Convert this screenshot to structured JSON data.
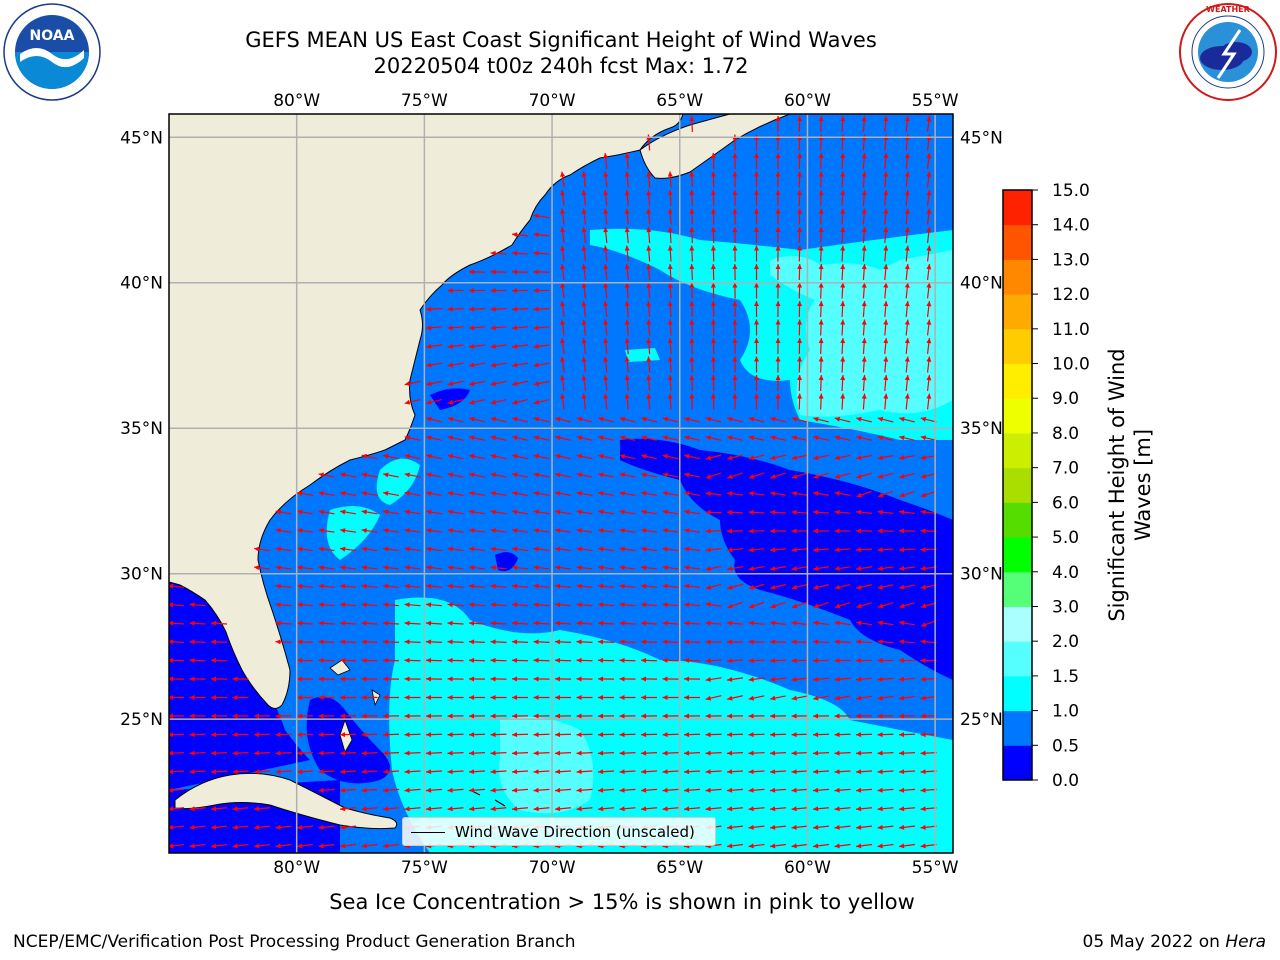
{
  "header": {
    "title_line1": "GEFS MEAN US East Coast Significant Height of Wind Waves",
    "title_line2": "20220504 t00z 240h fcst   Max: 1.72"
  },
  "logos": {
    "noaa": {
      "text": "NOAA",
      "ring_text": "NATIONAL OCEANIC AND ATMOSPHERIC ADMINISTRATION · U.S. DEPARTMENT OF COMMERCE"
    },
    "nws": {
      "ring_text": "NATIONAL WEATHER SERVICE"
    }
  },
  "map": {
    "lon_labels": [
      "80°W",
      "75°W",
      "70°W",
      "65°W",
      "60°W",
      "55°W"
    ],
    "lat_labels": [
      "45°N",
      "40°N",
      "35°N",
      "30°N",
      "25°N"
    ],
    "lon_range": [
      -85,
      -54.3
    ],
    "lat_range": [
      20.4,
      45.8
    ],
    "grid": true,
    "land_color": "#efedda",
    "arrow_color": "#ff0000",
    "legend_label": "Wind Wave Direction (unscaled)"
  },
  "colorbar": {
    "title_line1": "Significant Height of Wind",
    "title_line2": "Waves [m]",
    "ticks": [
      "0.0",
      "0.5",
      "1.0",
      "1.5",
      "2.0",
      "3.0",
      "4.0",
      "5.0",
      "6.0",
      "7.0",
      "8.0",
      "9.0",
      "10.0",
      "11.0",
      "12.0",
      "13.0",
      "14.0",
      "15.0"
    ],
    "colors": [
      "#0000ff",
      "#0077ff",
      "#00ffff",
      "#55ffff",
      "#aaffff",
      "#55ff77",
      "#00ff00",
      "#55dd00",
      "#aadd00",
      "#ccee00",
      "#eeff00",
      "#ffee00",
      "#ffcc00",
      "#ffaa00",
      "#ff8800",
      "#ff5500",
      "#ff2200"
    ]
  },
  "footer": {
    "sea_ice_note": "Sea Ice Concentration > 15% is shown in pink to yellow",
    "credit": "NCEP/EMC/Verification Post Processing Product Generation Branch",
    "date": "05 May 2022 on",
    "machine": "Hera"
  }
}
